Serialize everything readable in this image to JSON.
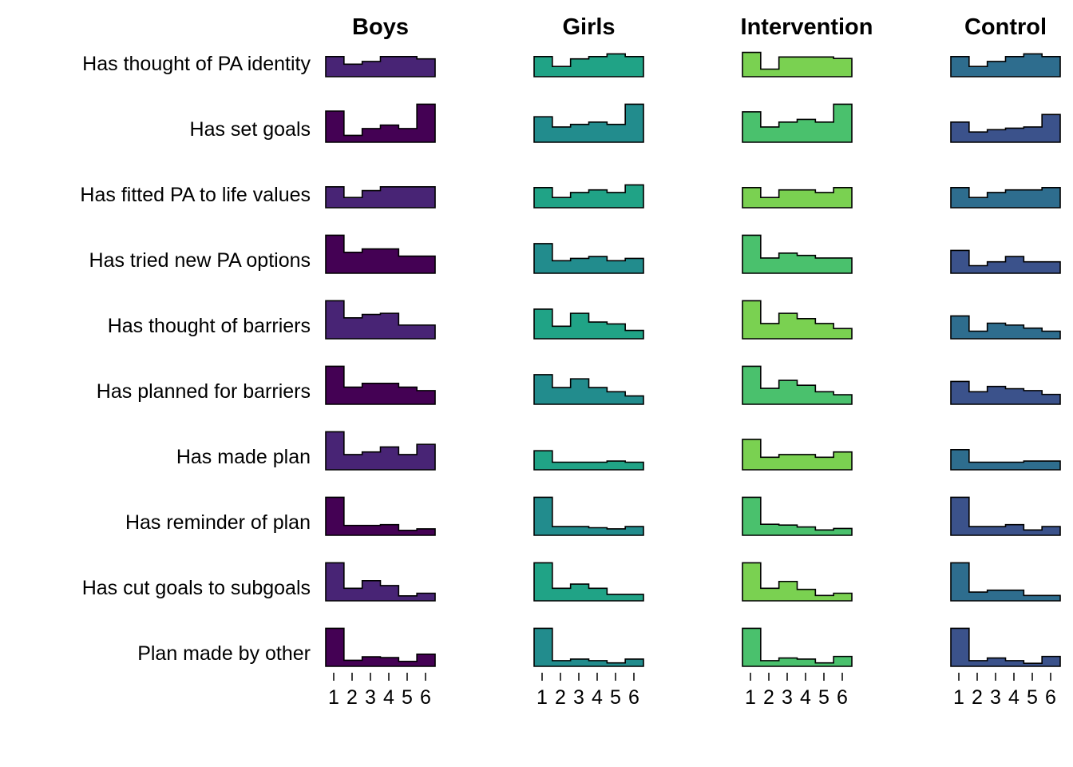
{
  "chart_data": {
    "type": "histogram-grid",
    "columns": [
      {
        "title": "Boys",
        "colors": [
          "#482475",
          "#440154",
          "#482475",
          "#440154",
          "#482475",
          "#440154",
          "#482475",
          "#440154",
          "#482475",
          "#440154"
        ]
      },
      {
        "title": "Girls",
        "colors": [
          "#20a386",
          "#228c8d",
          "#20a386",
          "#228c8d",
          "#20a386",
          "#228c8d",
          "#20a386",
          "#228c8d",
          "#20a386",
          "#228c8d"
        ]
      },
      {
        "title": "Intervention",
        "colors": [
          "#7ad151",
          "#4ac16d",
          "#7ad151",
          "#4ac16d",
          "#7ad151",
          "#4ac16d",
          "#7ad151",
          "#4ac16d",
          "#7ad151",
          "#4ac16d"
        ]
      },
      {
        "title": "Control",
        "colors": [
          "#2e6d8e",
          "#3b528b",
          "#2e6d8e",
          "#3b528b",
          "#2e6d8e",
          "#3b528b",
          "#2e6d8e",
          "#3b528b",
          "#2e6d8e",
          "#3b528b"
        ]
      }
    ],
    "rows": [
      "Has thought of PA identity",
      "Has set goals",
      "Has fitted PA to life values",
      "Has tried new PA options",
      "Has thought of barriers",
      "Has planned for barriers",
      "Has made plan",
      "Has reminder of plan",
      "Has cut goals to subgoals",
      "Plan made by other"
    ],
    "x_ticks": [
      "1",
      "2",
      "3",
      "4",
      "5",
      "6"
    ],
    "values": [
      [
        [
          0.53,
          0.33,
          0.4,
          0.53,
          0.53,
          0.47
        ],
        [
          0.82,
          0.18,
          0.36,
          0.45,
          0.36,
          1.0
        ],
        [
          0.55,
          0.27,
          0.45,
          0.55,
          0.55,
          0.55
        ],
        [
          1.0,
          0.55,
          0.64,
          0.64,
          0.45,
          0.45
        ],
        [
          1.0,
          0.55,
          0.64,
          0.67,
          0.36,
          0.36
        ],
        [
          1.0,
          0.45,
          0.55,
          0.55,
          0.45,
          0.36
        ],
        [
          1.0,
          0.4,
          0.47,
          0.6,
          0.4,
          0.67
        ],
        [
          1.0,
          0.26,
          0.26,
          0.28,
          0.13,
          0.17
        ],
        [
          1.0,
          0.33,
          0.53,
          0.4,
          0.13,
          0.2
        ],
        [
          1.0,
          0.16,
          0.25,
          0.23,
          0.13,
          0.32
        ]
      ],
      [
        [
          0.53,
          0.27,
          0.47,
          0.53,
          0.6,
          0.53
        ],
        [
          0.67,
          0.4,
          0.47,
          0.53,
          0.47,
          1.0
        ],
        [
          0.53,
          0.27,
          0.4,
          0.47,
          0.4,
          0.6
        ],
        [
          0.78,
          0.33,
          0.39,
          0.44,
          0.33,
          0.39
        ],
        [
          0.78,
          0.33,
          0.67,
          0.44,
          0.39,
          0.22
        ],
        [
          0.78,
          0.44,
          0.67,
          0.44,
          0.33,
          0.22
        ],
        [
          0.5,
          0.2,
          0.2,
          0.2,
          0.23,
          0.2
        ],
        [
          1.0,
          0.23,
          0.23,
          0.2,
          0.17,
          0.23
        ],
        [
          1.0,
          0.33,
          0.44,
          0.33,
          0.17,
          0.17
        ],
        [
          1.0,
          0.15,
          0.19,
          0.15,
          0.09,
          0.19
        ]
      ],
      [
        [
          0.64,
          0.2,
          0.52,
          0.52,
          0.52,
          0.48
        ],
        [
          0.8,
          0.4,
          0.53,
          0.6,
          0.53,
          1.0
        ],
        [
          0.53,
          0.27,
          0.47,
          0.47,
          0.4,
          0.53
        ],
        [
          1.0,
          0.4,
          0.53,
          0.47,
          0.4,
          0.4
        ],
        [
          1.0,
          0.4,
          0.67,
          0.53,
          0.4,
          0.27
        ],
        [
          1.0,
          0.42,
          0.63,
          0.5,
          0.33,
          0.25
        ],
        [
          0.8,
          0.33,
          0.4,
          0.4,
          0.33,
          0.47
        ],
        [
          1.0,
          0.29,
          0.27,
          0.22,
          0.14,
          0.18
        ],
        [
          1.0,
          0.33,
          0.51,
          0.3,
          0.14,
          0.2
        ],
        [
          1.0,
          0.15,
          0.22,
          0.19,
          0.09,
          0.26
        ]
      ],
      [
        [
          0.53,
          0.27,
          0.4,
          0.53,
          0.6,
          0.53
        ],
        [
          0.53,
          0.27,
          0.33,
          0.37,
          0.4,
          0.73
        ],
        [
          0.53,
          0.27,
          0.4,
          0.47,
          0.47,
          0.53
        ],
        [
          0.6,
          0.2,
          0.3,
          0.44,
          0.3,
          0.3
        ],
        [
          0.6,
          0.2,
          0.41,
          0.36,
          0.28,
          0.2
        ],
        [
          0.6,
          0.33,
          0.47,
          0.41,
          0.36,
          0.26
        ],
        [
          0.53,
          0.2,
          0.2,
          0.2,
          0.23,
          0.23
        ],
        [
          1.0,
          0.23,
          0.23,
          0.28,
          0.14,
          0.23
        ],
        [
          1.0,
          0.23,
          0.28,
          0.28,
          0.14,
          0.14
        ],
        [
          1.0,
          0.15,
          0.22,
          0.15,
          0.08,
          0.26
        ]
      ]
    ]
  }
}
